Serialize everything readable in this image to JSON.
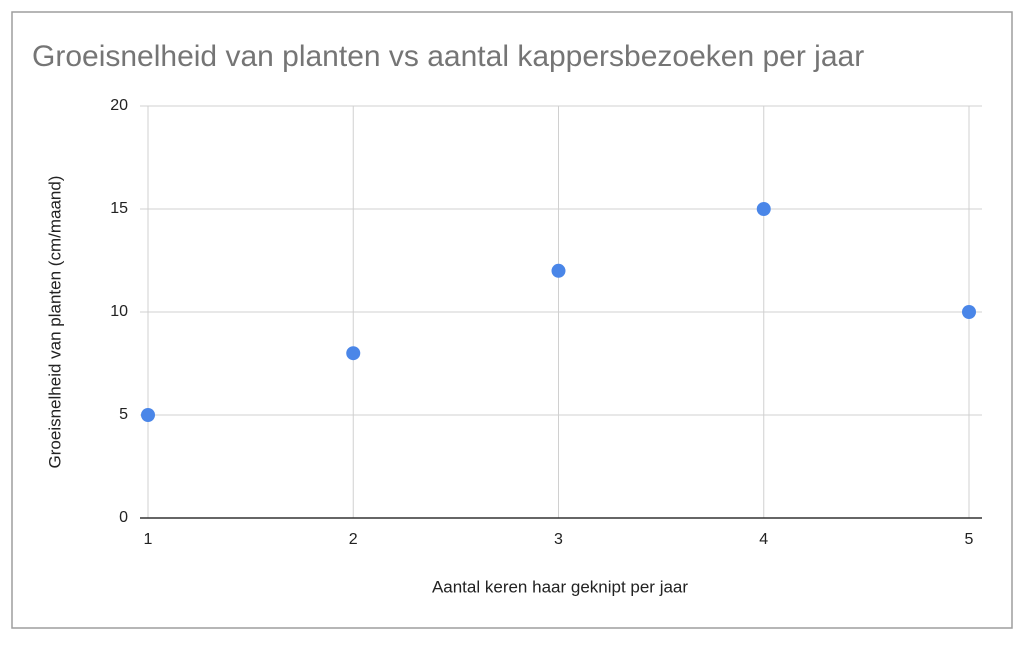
{
  "chart_data": {
    "type": "scatter",
    "title": "Groeisnelheid van planten vs aantal kappersbezoeken per jaar",
    "x_label": "Aantal keren haar geknipt per jaar",
    "y_label": "Groeisnelheid van planten (cm/maand)",
    "series": [
      {
        "color": "#4a86e8",
        "x": [
          1,
          2,
          3,
          4,
          5
        ],
        "values": [
          5,
          8,
          12,
          15,
          10
        ]
      }
    ],
    "xlim": [
      1,
      5
    ],
    "xticks": [
      1,
      2,
      3,
      4,
      5
    ],
    "ylim": [
      0,
      20
    ],
    "yticks": [
      0,
      5,
      10,
      15,
      20
    ],
    "grid": true
  }
}
